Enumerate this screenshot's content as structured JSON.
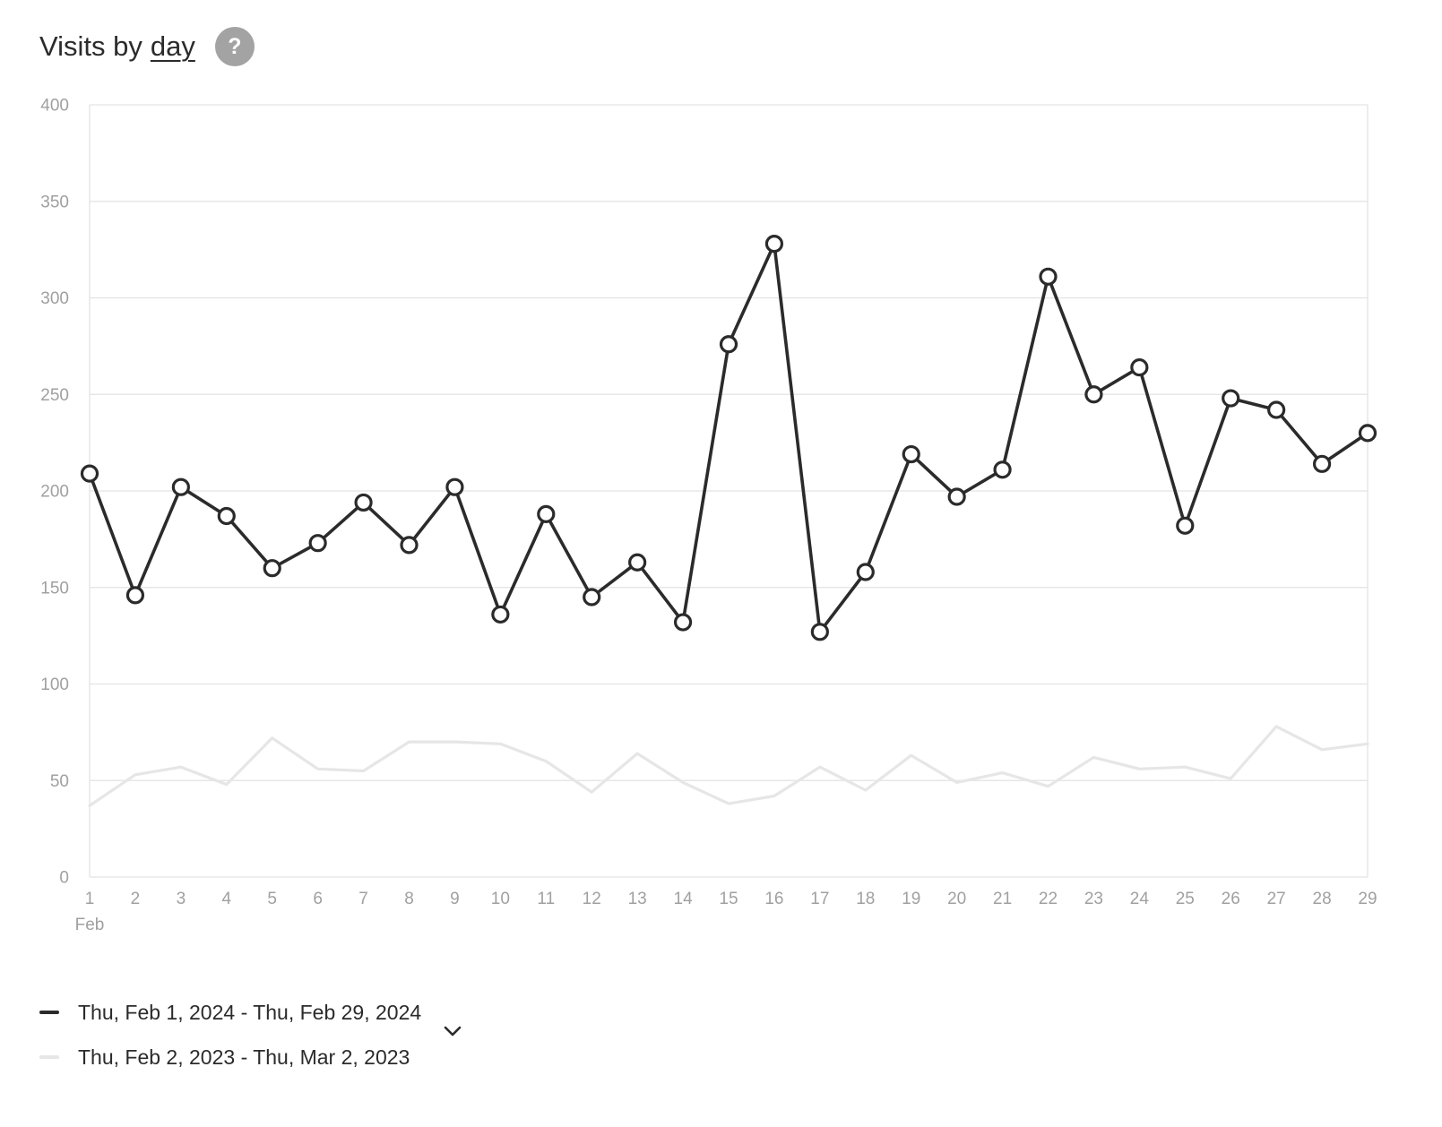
{
  "header": {
    "title_prefix": "Visits by",
    "title_interval": "day",
    "help_label": "?"
  },
  "colors": {
    "current": "#2b2b2b",
    "comparison": "#e6e6e6",
    "grid": "#e3e3e3",
    "tick": "#a0a0a0"
  },
  "chart_data": {
    "type": "line",
    "title": "Visits by day",
    "xlabel": "",
    "ylabel": "",
    "x_month_label": "Feb",
    "categories": [
      "1",
      "2",
      "3",
      "4",
      "5",
      "6",
      "7",
      "8",
      "9",
      "10",
      "11",
      "12",
      "13",
      "14",
      "15",
      "16",
      "17",
      "18",
      "19",
      "20",
      "21",
      "22",
      "23",
      "24",
      "25",
      "26",
      "27",
      "28",
      "29"
    ],
    "yticks": [
      0,
      50,
      100,
      150,
      200,
      250,
      300,
      350,
      400
    ],
    "ylim": [
      0,
      400
    ],
    "grid": true,
    "legend_position": "bottom-left",
    "series": [
      {
        "name": "Thu, Feb 1, 2024 - Thu, Feb 29, 2024",
        "values": [
          209,
          146,
          202,
          187,
          160,
          173,
          194,
          172,
          202,
          136,
          188,
          145,
          163,
          132,
          276,
          328,
          127,
          158,
          219,
          197,
          211,
          311,
          250,
          264,
          182,
          248,
          242,
          214,
          230
        ],
        "markers": true
      },
      {
        "name": "Thu, Feb 2, 2023 - Thu, Mar 2, 2023",
        "values": [
          37,
          53,
          57,
          48,
          72,
          56,
          55,
          70,
          70,
          69,
          60,
          44,
          64,
          49,
          38,
          42,
          57,
          45,
          63,
          49,
          54,
          47,
          62,
          56,
          57,
          51,
          78,
          66,
          69
        ],
        "markers": false
      }
    ]
  },
  "legend": {
    "items": [
      {
        "label": "Thu, Feb 1, 2024 - Thu, Feb 29, 2024"
      },
      {
        "label": "Thu, Feb 2, 2023 - Thu, Mar 2, 2023"
      }
    ]
  }
}
